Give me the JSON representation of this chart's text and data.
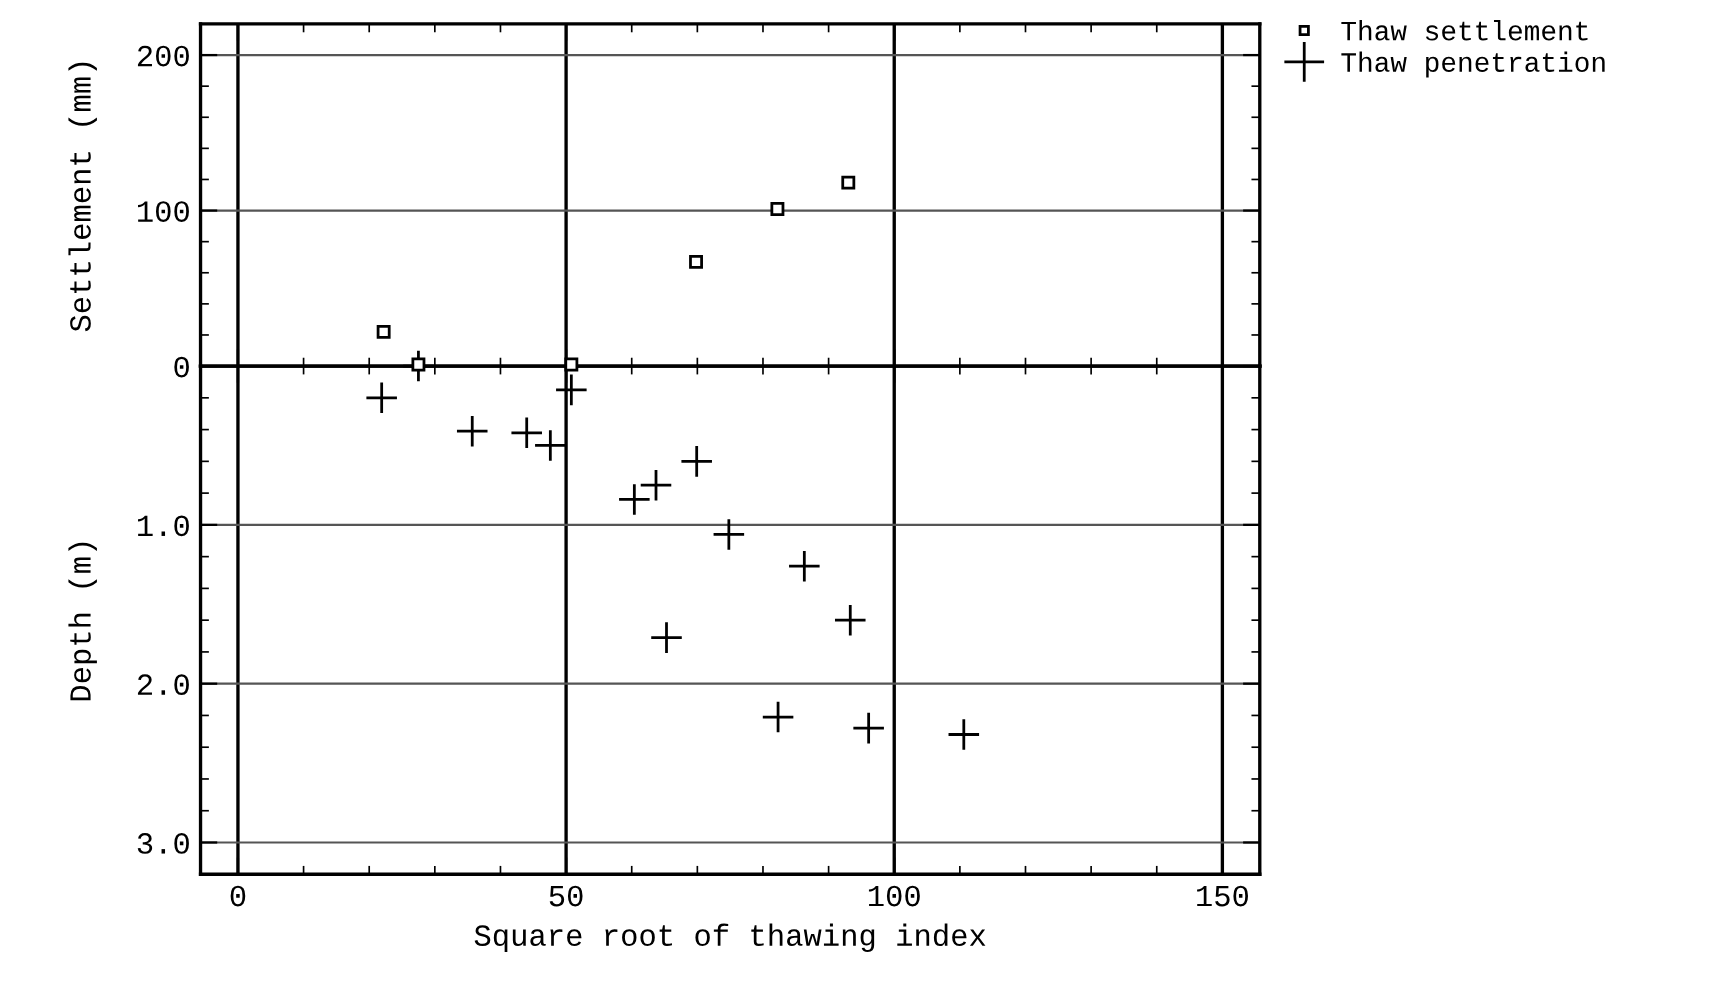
{
  "chart_data": [
    {
      "type": "scatter",
      "ylabel": "Settlement (mm)",
      "tick_labels": "y",
      "grid": true,
      "legend": "top right",
      "xlim": [
        -5.7,
        155.7
      ],
      "ylim": [
        0,
        220
      ],
      "xticks": [
        0,
        {
          "value": 10,
          "label": null
        },
        {
          "value": 20,
          "label": null
        },
        {
          "value": 30,
          "label": null
        },
        {
          "value": 40,
          "label": null
        },
        50,
        {
          "value": 60,
          "label": null
        },
        {
          "value": 70,
          "label": null
        },
        {
          "value": 80,
          "label": null
        },
        {
          "value": 90,
          "label": null
        },
        100,
        {
          "value": 110,
          "label": null
        },
        {
          "value": 120,
          "label": null
        },
        {
          "value": 130,
          "label": null
        },
        {
          "value": 140,
          "label": null
        },
        150
      ],
      "yticks": [
        0,
        {
          "value": 20,
          "label": null
        },
        {
          "value": 40,
          "label": null
        },
        {
          "value": 60,
          "label": null
        },
        {
          "value": 80,
          "label": null
        },
        100,
        {
          "value": 120,
          "label": null
        },
        {
          "value": 140,
          "label": null
        },
        {
          "value": 160,
          "label": null
        },
        {
          "value": 180,
          "label": null
        },
        200
      ],
      "series": [
        {
          "name": "Thaw settlement",
          "color": "#000000",
          "marker": "square",
          "x": [
            22.2,
            27.5,
            50.8,
            69.8,
            82.2,
            93
          ],
          "values": [
            22,
            1,
            1,
            67,
            101,
            118
          ]
        }
      ]
    },
    {
      "type": "scatter",
      "ylabel": "Depth (m)",
      "xlabel": "Square root of thawing index",
      "grid": true,
      "xlim": [
        -5.7,
        155.7
      ],
      "ylim": [
        3.2,
        0
      ],
      "xticks": [
        0,
        {
          "value": 10,
          "label": null
        },
        {
          "value": 20,
          "label": null
        },
        {
          "value": 30,
          "label": null
        },
        {
          "value": 40,
          "label": null
        },
        50,
        {
          "value": 60,
          "label": null
        },
        {
          "value": 70,
          "label": null
        },
        {
          "value": 80,
          "label": null
        },
        {
          "value": 90,
          "label": null
        },
        100,
        {
          "value": 110,
          "label": null
        },
        {
          "value": 120,
          "label": null
        },
        {
          "value": 130,
          "label": null
        },
        {
          "value": 140,
          "label": null
        },
        150
      ],
      "yticks": [
        {
          "value": 0.2,
          "label": null
        },
        {
          "value": 0.4,
          "label": null
        },
        {
          "value": 0.6,
          "label": null
        },
        {
          "value": 0.8,
          "label": null
        },
        {
          "value": 1.0,
          "label": "1.0"
        },
        {
          "value": 1.2,
          "label": null
        },
        {
          "value": 1.4,
          "label": null
        },
        {
          "value": 1.6,
          "label": null
        },
        {
          "value": 1.8,
          "label": null
        },
        {
          "value": 2.0,
          "label": "2.0"
        },
        {
          "value": 2.2,
          "label": null
        },
        {
          "value": 2.4,
          "label": null
        },
        {
          "value": 2.6,
          "label": null
        },
        {
          "value": 2.8,
          "label": null
        },
        {
          "value": 3.0,
          "label": "3.0"
        }
      ],
      "series": [
        {
          "name": "Thaw penetration",
          "color": "#000000",
          "marker": "cross",
          "x": [
            21.9,
            27.5,
            35.7,
            44,
            47.6,
            50.8,
            60.4,
            63.7,
            69.9,
            74.8,
            86.3,
            65.3,
            93.3,
            82.3,
            96.1,
            110.6
          ],
          "values": [
            0.2,
            0.0,
            0.41,
            0.42,
            0.5,
            0.15,
            0.84,
            0.75,
            0.6,
            1.06,
            1.26,
            1.71,
            1.6,
            2.21,
            2.28,
            2.32
          ]
        }
      ]
    }
  ]
}
